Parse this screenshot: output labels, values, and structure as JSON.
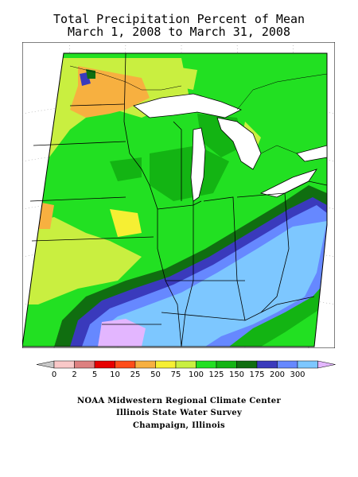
{
  "title": {
    "line1": "Total Precipitation Percent of Mean",
    "line2": "March 1, 2008 to March 31, 2008"
  },
  "legend": {
    "labels": [
      "0",
      "2",
      "5",
      "10",
      "25",
      "50",
      "75",
      "100",
      "125",
      "150",
      "175",
      "200",
      "300"
    ],
    "colors": [
      "#f9c8c8",
      "#dd8080",
      "#e70000",
      "#ff4d1a",
      "#f7b040",
      "#f6ef33",
      "#c9ef40",
      "#22e022",
      "#13b413",
      "#106e10",
      "#3a3abc",
      "#6688ff",
      "#7dc7ff"
    ],
    "low_arrow_color": "#c8c8c8",
    "high_arrow_color": "#e3b6ff"
  },
  "credits": {
    "line1": "NOAA Midwestern Regional Climate Center",
    "line2": "Illinois State Water Survey",
    "line3": "Champaign, Illinois"
  },
  "colors": {
    "lake": "#ffffff",
    "background": "#ffffff",
    "borders": "#000000"
  }
}
